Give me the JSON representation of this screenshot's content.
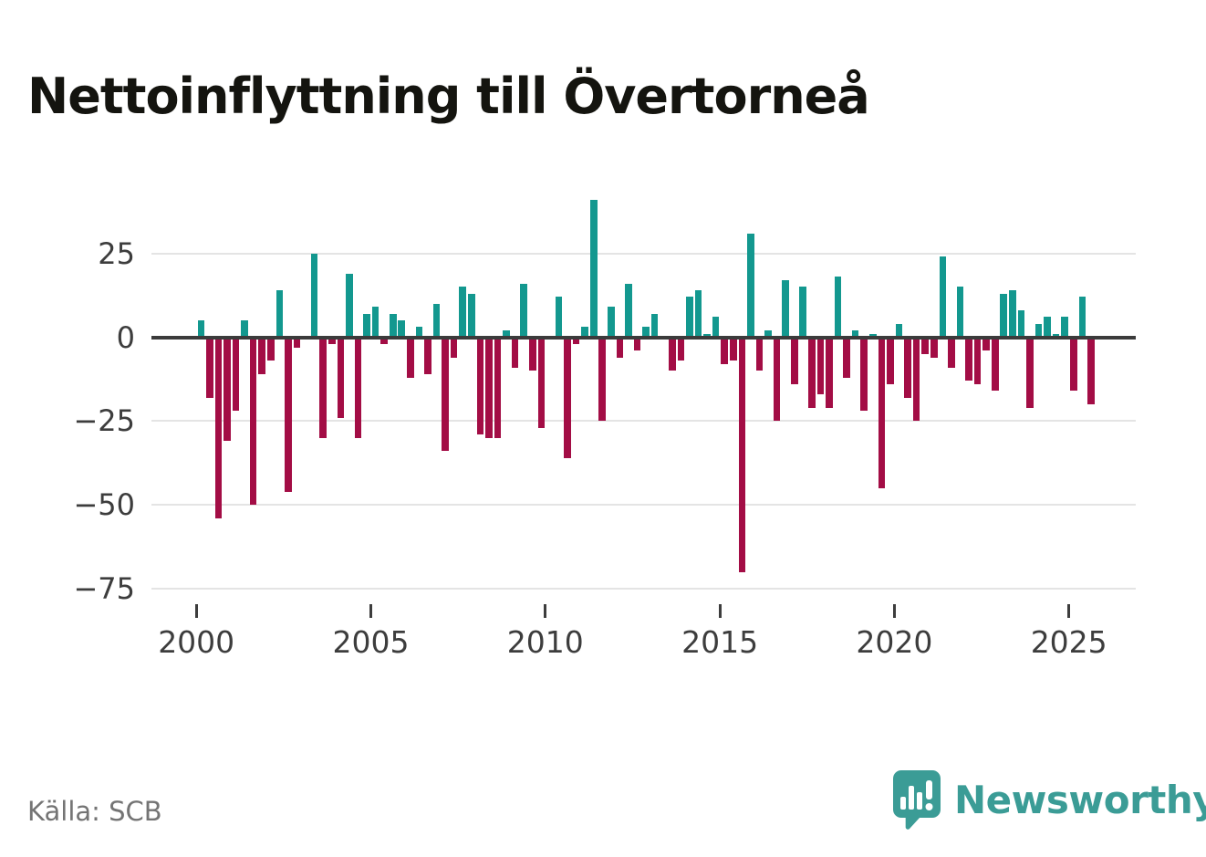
{
  "title": "Nettoinflyttning till Övertorneå",
  "source": "Källa: SCB",
  "brand": {
    "name": "Newsworthy",
    "logo_icon": "speech-bubble-bar-chart-icon",
    "color": "#3b9c96"
  },
  "colors": {
    "positive_bar": "#13988f",
    "negative_bar": "#a30d45",
    "zero_line": "#3b3b3b",
    "gridline": "#e4e4e4",
    "axis_text": "#3d3d3d"
  },
  "chart_data": {
    "type": "bar",
    "title": "Nettoinflyttning till Övertorneå",
    "frequency": "quarterly",
    "start_period": "2000 Q1",
    "end_period": "2025 Q3",
    "grid": "horizontal",
    "legend": "none",
    "ylim": [
      -75,
      45
    ],
    "yticks": [
      {
        "v": 25,
        "label": "25"
      },
      {
        "v": 0,
        "label": "0"
      },
      {
        "v": -25,
        "label": "−25"
      },
      {
        "v": -50,
        "label": "−50"
      },
      {
        "v": -75,
        "label": "−75"
      }
    ],
    "xticks": [
      {
        "year": 2000,
        "label": "2000"
      },
      {
        "year": 2005,
        "label": "2005"
      },
      {
        "year": 2010,
        "label": "2010"
      },
      {
        "year": 2015,
        "label": "2015"
      },
      {
        "year": 2020,
        "label": "2020"
      },
      {
        "year": 2025,
        "label": "2025"
      }
    ],
    "values": [
      5,
      -18,
      -54,
      -31,
      -22,
      5,
      -50,
      -11,
      -7,
      14,
      -46,
      -3,
      0,
      25,
      -30,
      -2,
      -24,
      19,
      -30,
      7,
      9,
      -2,
      7,
      5,
      -12,
      3,
      -11,
      10,
      -34,
      -6,
      15,
      13,
      -29,
      -30,
      -30,
      2,
      -9,
      16,
      -10,
      -27,
      0,
      12,
      -36,
      -2,
      3,
      41,
      -25,
      9,
      -6,
      16,
      -4,
      3,
      7,
      0,
      -10,
      -7,
      12,
      14,
      1,
      6,
      -8,
      -7,
      -70,
      31,
      -10,
      2,
      -25,
      17,
      -14,
      15,
      -21,
      -17,
      -21,
      18,
      -12,
      2,
      -22,
      1,
      -45,
      -14,
      4,
      -18,
      -25,
      -5,
      -6,
      24,
      -9,
      15,
      -13,
      -14,
      -4,
      -16,
      13,
      14,
      8,
      -21,
      4,
      6,
      1,
      6,
      -16,
      12,
      -20
    ]
  }
}
